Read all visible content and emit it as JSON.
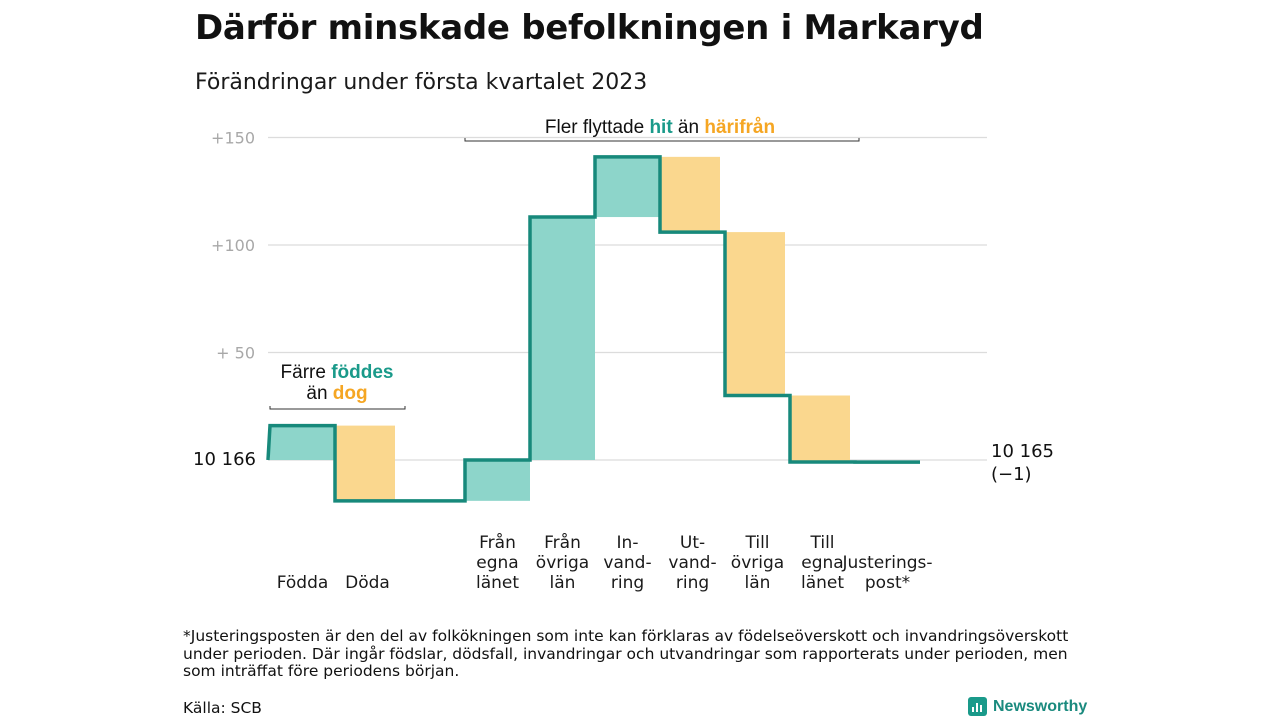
{
  "title": "Därför minskade befolkningen i Markaryd",
  "subtitle": "Förändringar under första kvartalet 2023",
  "footnote": "*Justeringsposten är den del av folkökningen som inte kan förklaras av födelseöverskott och invandringsöverskott under perioden. Där ingår födslar, dödsfall, invandringar och utvandringar som rapporterats under perioden, men som inträffat före periodens början.",
  "source": "Källa: SCB",
  "brand": "Newsworthy",
  "colors": {
    "increase": "#8dd5ca",
    "decrease": "#fad78e",
    "line": "#17897b",
    "grid": "#dcdcdc",
    "bracket": "#333333"
  },
  "chart_data": {
    "type": "waterfall",
    "start_label": "10 166",
    "end_label": "10 165",
    "end_change": "(−1)",
    "y_ticks": [
      "+150",
      "+100",
      "+ 50"
    ],
    "ylim": [
      -20,
      150
    ],
    "grid": true,
    "steps": [
      {
        "label": "Födda",
        "delta": 16,
        "kind": "increase"
      },
      {
        "label": "Döda",
        "delta": -35,
        "kind": "decrease"
      },
      {
        "label": "",
        "delta": 0,
        "kind": "none"
      },
      {
        "label": "Från egna länet",
        "delta": 19,
        "kind": "increase"
      },
      {
        "label": "Från övriga län",
        "delta": 113,
        "kind": "increase"
      },
      {
        "label": "In-vand-ring",
        "delta": 28,
        "kind": "increase"
      },
      {
        "label": "Ut-vand-ring",
        "delta": -35,
        "kind": "decrease"
      },
      {
        "label": "Till övriga län",
        "delta": -76,
        "kind": "decrease"
      },
      {
        "label": "Till egna länet",
        "delta": -31,
        "kind": "decrease"
      },
      {
        "label": "Justerings-post*",
        "delta": 0,
        "kind": "none"
      }
    ],
    "category_label_lines": [
      [
        "Födda"
      ],
      [
        "Döda"
      ],
      [],
      [
        "Från",
        "egna",
        "länet"
      ],
      [
        "Från",
        "övriga",
        "län"
      ],
      [
        "In-",
        "vand-",
        "ring"
      ],
      [
        "Ut-",
        "vand-",
        "ring"
      ],
      [
        "Till",
        "övriga",
        "län"
      ],
      [
        "Till",
        "egna",
        "länet"
      ],
      [
        "Justerings-",
        "post*"
      ]
    ],
    "annotations": [
      {
        "id": "births",
        "parts": [
          [
            "Färre ",
            ""
          ],
          [
            "föddes",
            "teal"
          ]
        ],
        "parts2": [
          [
            "än ",
            ""
          ],
          [
            "dog",
            "orange"
          ]
        ]
      },
      {
        "id": "moves",
        "parts": [
          [
            "Fler flyttade ",
            ""
          ],
          [
            "hit",
            "teal"
          ],
          [
            " än ",
            ""
          ],
          [
            "härifrån",
            "orange"
          ]
        ]
      }
    ]
  }
}
